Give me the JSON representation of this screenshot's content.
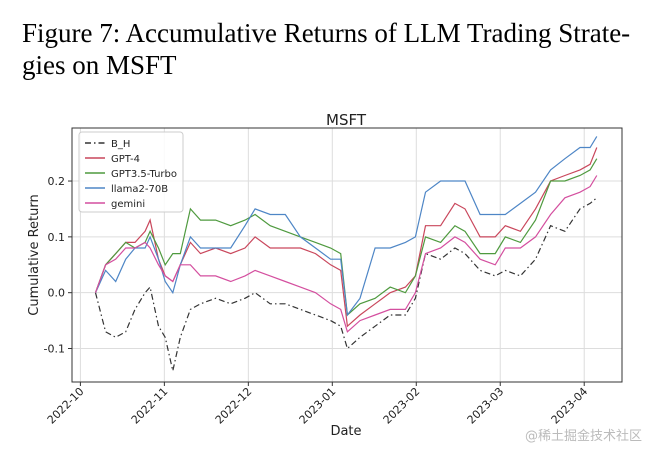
{
  "caption_lines": [
    "Figure 7: Accumulative Returns of LLM Trading Strate-",
    "gies on MSFT"
  ],
  "watermark": "@稀土掘金技术社区",
  "chart_data": {
    "type": "line",
    "title": "MSFT",
    "x_label": "Date",
    "y_label": "Cumulative Return",
    "x": [
      0.18,
      0.3,
      0.42,
      0.54,
      0.65,
      0.77,
      0.83,
      0.93,
      1.01,
      1.1,
      1.19,
      1.31,
      1.43,
      1.61,
      1.79,
      1.96,
      2.08,
      2.26,
      2.44,
      2.62,
      2.8,
      2.98,
      3.1,
      3.18,
      3.33,
      3.51,
      3.69,
      3.87,
      3.99,
      4.11,
      4.29,
      4.46,
      4.58,
      4.76,
      4.94,
      5.06,
      5.24,
      5.42,
      5.6,
      5.77,
      5.95,
      6.07,
      6.15
    ],
    "series": [
      {
        "name": "B_H",
        "color": "#333333",
        "linestyle": "dashdot",
        "values": [
          0,
          -0.07,
          -0.08,
          -0.07,
          -0.03,
          0.0,
          0.01,
          -0.06,
          -0.08,
          -0.14,
          -0.08,
          -0.03,
          -0.02,
          -0.01,
          -0.02,
          -0.01,
          0.0,
          -0.02,
          -0.02,
          -0.03,
          -0.04,
          -0.05,
          -0.06,
          -0.1,
          -0.08,
          -0.06,
          -0.04,
          -0.04,
          -0.01,
          0.07,
          0.06,
          0.08,
          0.07,
          0.04,
          0.03,
          0.04,
          0.03,
          0.06,
          0.12,
          0.11,
          0.15,
          0.16,
          0.17
        ]
      },
      {
        "name": "GPT-4",
        "color": "#c9475c",
        "values": [
          0,
          0.05,
          0.07,
          0.09,
          0.09,
          0.11,
          0.13,
          0.06,
          0.03,
          0.02,
          0.05,
          0.09,
          0.07,
          0.08,
          0.07,
          0.08,
          0.1,
          0.08,
          0.08,
          0.08,
          0.07,
          0.05,
          0.04,
          -0.06,
          -0.04,
          -0.02,
          0.0,
          0.01,
          0.03,
          0.12,
          0.12,
          0.16,
          0.15,
          0.1,
          0.1,
          0.12,
          0.11,
          0.15,
          0.2,
          0.21,
          0.22,
          0.23,
          0.26
        ]
      },
      {
        "name": "GPT3.5-Turbo",
        "color": "#4f9a3f",
        "values": [
          0,
          0.05,
          0.07,
          0.09,
          0.08,
          0.09,
          0.11,
          0.08,
          0.05,
          0.07,
          0.07,
          0.15,
          0.13,
          0.13,
          0.12,
          0.13,
          0.14,
          0.12,
          0.11,
          0.1,
          0.09,
          0.08,
          0.07,
          -0.04,
          -0.02,
          -0.01,
          0.01,
          0.0,
          0.03,
          0.1,
          0.09,
          0.12,
          0.11,
          0.07,
          0.07,
          0.1,
          0.09,
          0.13,
          0.2,
          0.2,
          0.21,
          0.22,
          0.24
        ]
      },
      {
        "name": "llama2-70B",
        "color": "#4e86c6",
        "values": [
          0,
          0.04,
          0.02,
          0.06,
          0.08,
          0.08,
          0.1,
          0.06,
          0.02,
          0.0,
          0.05,
          0.1,
          0.08,
          0.08,
          0.08,
          0.12,
          0.15,
          0.14,
          0.14,
          0.1,
          0.08,
          0.06,
          0.06,
          -0.04,
          -0.01,
          0.08,
          0.08,
          0.09,
          0.1,
          0.18,
          0.2,
          0.2,
          0.2,
          0.14,
          0.14,
          0.14,
          0.16,
          0.18,
          0.22,
          0.24,
          0.26,
          0.26,
          0.28
        ]
      },
      {
        "name": "gemini",
        "color": "#d44f9f",
        "values": [
          0,
          0.05,
          0.06,
          0.08,
          0.08,
          0.09,
          0.08,
          0.05,
          0.03,
          0.02,
          0.05,
          0.05,
          0.03,
          0.03,
          0.02,
          0.03,
          0.04,
          0.03,
          0.02,
          0.01,
          0.0,
          -0.02,
          -0.03,
          -0.07,
          -0.05,
          -0.04,
          -0.03,
          -0.03,
          0.0,
          0.07,
          0.08,
          0.1,
          0.09,
          0.06,
          0.05,
          0.08,
          0.08,
          0.1,
          0.14,
          0.17,
          0.18,
          0.19,
          0.21
        ]
      }
    ],
    "xlim": [
      -0.1,
      6.45
    ],
    "xticks": [
      {
        "value": 0,
        "label": "2022-10"
      },
      {
        "value": 1,
        "label": "2022-11"
      },
      {
        "value": 2,
        "label": "2022-12"
      },
      {
        "value": 3,
        "label": "2023-01"
      },
      {
        "value": 4,
        "label": "2023-02"
      },
      {
        "value": 5,
        "label": "2023-03"
      },
      {
        "value": 6,
        "label": "2023-04"
      }
    ],
    "ylim": [
      -0.16,
      0.295
    ],
    "yticks": [
      -0.1,
      {
        "value": 0,
        "label": "0.0"
      },
      0.1,
      0.2
    ],
    "grid": true,
    "legend": "upper left"
  }
}
